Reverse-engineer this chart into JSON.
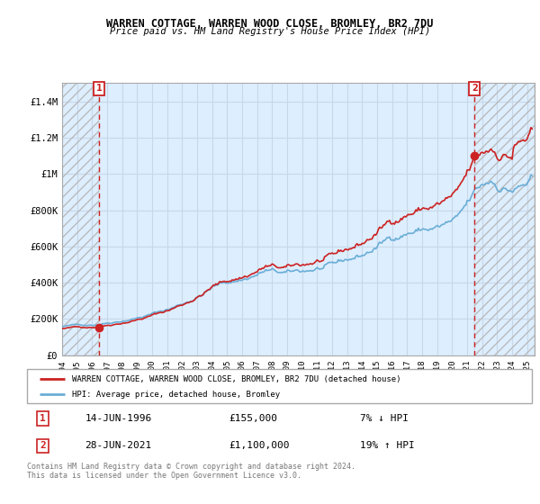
{
  "title": "WARREN COTTAGE, WARREN WOOD CLOSE, BROMLEY, BR2 7DU",
  "subtitle": "Price paid vs. HM Land Registry's House Price Index (HPI)",
  "ylim": [
    0,
    1500000
  ],
  "yticks": [
    0,
    200000,
    400000,
    600000,
    800000,
    1000000,
    1200000,
    1400000
  ],
  "ytick_labels": [
    "£0",
    "£200K",
    "£400K",
    "£600K",
    "£800K",
    "£1M",
    "£1.2M",
    "£1.4M"
  ],
  "hpi_color": "#6baed6",
  "price_color": "#cc2222",
  "grid_color": "#c8d8e8",
  "bg_color": "#ddeeff",
  "hatch_color": "#aaaaaa",
  "annotation_color": "#cc2222",
  "legend_label_price": "WARREN COTTAGE, WARREN WOOD CLOSE, BROMLEY, BR2 7DU (detached house)",
  "legend_label_hpi": "HPI: Average price, detached house, Bromley",
  "transaction1_date": "14-JUN-1996",
  "transaction1_price": "£155,000",
  "transaction1_hpi": "7% ↓ HPI",
  "transaction1_year": 1996.45,
  "transaction1_value": 155000,
  "transaction2_date": "28-JUN-2021",
  "transaction2_price": "£1,100,000",
  "transaction2_hpi": "19% ↑ HPI",
  "transaction2_year": 2021.49,
  "transaction2_value": 1100000,
  "copyright_text": "Contains HM Land Registry data © Crown copyright and database right 2024.\nThis data is licensed under the Open Government Licence v3.0.",
  "xlim_left": 1994.0,
  "xlim_right": 2025.5
}
